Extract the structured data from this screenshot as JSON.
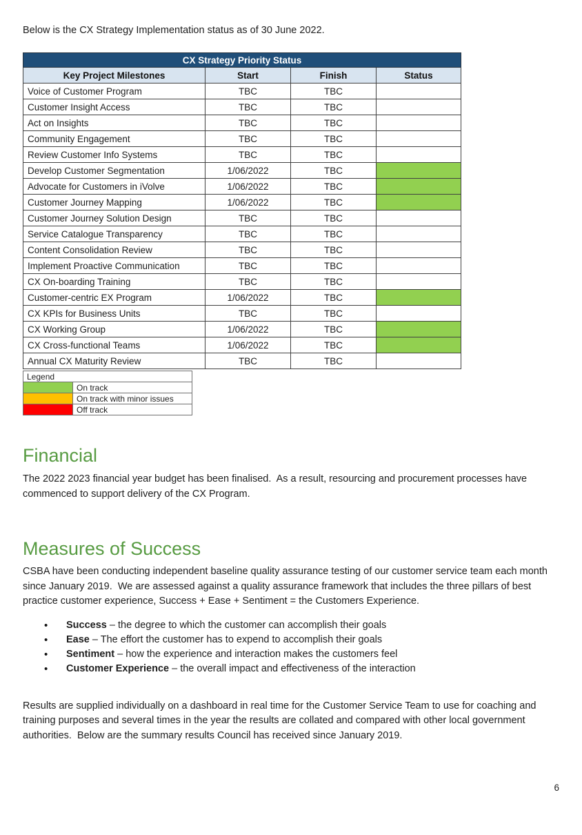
{
  "intro": "Below is the CX Strategy Implementation status as of 30 June 2022.",
  "status_table": {
    "title": "CX Strategy Priority Status",
    "columns": [
      "Key Project Milestones",
      "Start",
      "Finish",
      "Status"
    ],
    "rows": [
      {
        "milestone": "Voice of Customer Program",
        "start": "TBC",
        "finish": "TBC",
        "status": ""
      },
      {
        "milestone": "Customer Insight Access",
        "start": "TBC",
        "finish": "TBC",
        "status": ""
      },
      {
        "milestone": "Act on Insights",
        "start": "TBC",
        "finish": "TBC",
        "status": ""
      },
      {
        "milestone": "Community Engagement",
        "start": "TBC",
        "finish": "TBC",
        "status": ""
      },
      {
        "milestone": "Review Customer Info Systems",
        "start": "TBC",
        "finish": "TBC",
        "status": ""
      },
      {
        "milestone": "Develop Customer Segmentation",
        "start": "1/06/2022",
        "finish": "TBC",
        "status": "on_track"
      },
      {
        "milestone": "Advocate for Customers in iVolve",
        "start": "1/06/2022",
        "finish": "TBC",
        "status": "on_track"
      },
      {
        "milestone": "Customer Journey Mapping",
        "start": "1/06/2022",
        "finish": "TBC",
        "status": "on_track"
      },
      {
        "milestone": "Customer Journey Solution Design",
        "start": "TBC",
        "finish": "TBC",
        "status": ""
      },
      {
        "milestone": "Service Catalogue Transparency",
        "start": "TBC",
        "finish": "TBC",
        "status": ""
      },
      {
        "milestone": "Content Consolidation Review",
        "start": "TBC",
        "finish": "TBC",
        "status": ""
      },
      {
        "milestone": "Implement Proactive Communication",
        "start": "TBC",
        "finish": "TBC",
        "status": ""
      },
      {
        "milestone": "CX On-boarding Training",
        "start": "TBC",
        "finish": "TBC",
        "status": ""
      },
      {
        "milestone": "Customer-centric EX Program",
        "start": "1/06/2022",
        "finish": "TBC",
        "status": "on_track"
      },
      {
        "milestone": "CX KPIs for Business Units",
        "start": "TBC",
        "finish": "TBC",
        "status": ""
      },
      {
        "milestone": "CX Working Group",
        "start": "1/06/2022",
        "finish": "TBC",
        "status": "on_track"
      },
      {
        "milestone": "CX Cross-functional Teams",
        "start": "1/06/2022",
        "finish": "TBC",
        "status": "on_track"
      },
      {
        "milestone": "Annual CX Maturity Review",
        "start": "TBC",
        "finish": "TBC",
        "status": ""
      }
    ]
  },
  "legend": {
    "title": "Legend",
    "items": [
      {
        "status_key": "on_track",
        "color": "#92D050",
        "label": "On track"
      },
      {
        "status_key": "minor_issues",
        "color": "#FFC000",
        "label": "On track with minor issues"
      },
      {
        "status_key": "off_track",
        "color": "#FF0000",
        "label": "Off track"
      }
    ]
  },
  "sections": {
    "financial": {
      "heading": "Financial",
      "body": "The 2022 2023 financial year budget has been finalised.  As a result, resourcing and procurement processes have commenced to support delivery of the CX Program."
    },
    "measures": {
      "heading": "Measures of Success",
      "body": "CSBA have been conducting independent baseline quality assurance testing of our customer service team each month since January 2019.  We are assessed against a quality assurance framework that includes the three pillars of best practice customer experience, Success + Ease + Sentiment = the Customers Experience.",
      "bullets": [
        {
          "term": "Success",
          "text": " – the degree to which the customer can accomplish their goals"
        },
        {
          "term": "Ease",
          "text": " – The effort the customer has to expend to accomplish their goals"
        },
        {
          "term": "Sentiment",
          "text": " – how the experience and interaction makes the customers feel"
        },
        {
          "term": "Customer Experience",
          "text": " – the overall impact and effectiveness of the interaction"
        }
      ],
      "closing": "Results are supplied individually on a dashboard in real time for the Customer Service Team to use for coaching and training purposes and several times in the year the results are collated and compared with other local government authorities.  Below are the summary results Council has received since January 2019."
    }
  },
  "page": {
    "number": "6"
  },
  "colors": {
    "header_bg": "#1F4E79",
    "subheader_bg": "#D8E4F0",
    "on_track": "#92D050",
    "minor_issues": "#FFC000",
    "off_track": "#FF0000",
    "heading_green": "#579B42"
  }
}
